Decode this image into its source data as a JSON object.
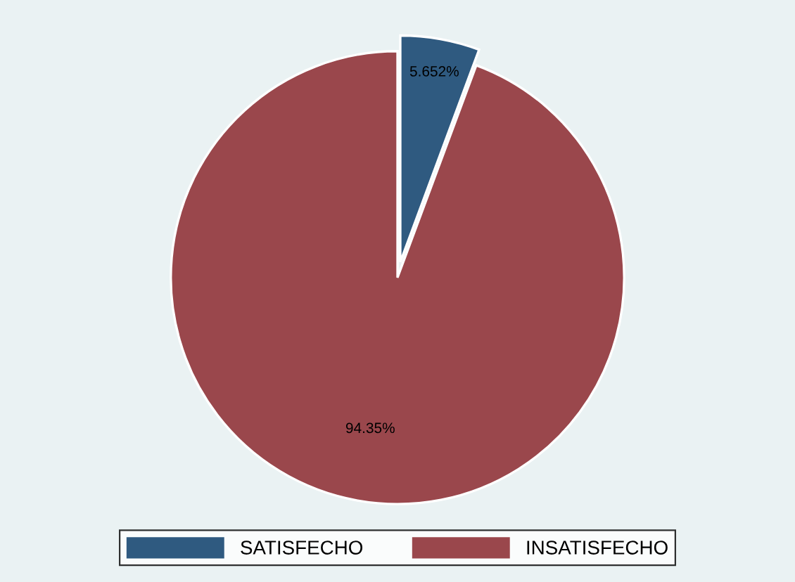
{
  "chart_data": {
    "type": "pie",
    "categories": [
      "SATISFECHO",
      "INSATISFECHO"
    ],
    "values": [
      5.652,
      94.35
    ],
    "colors": [
      "#2f5a80",
      "#9a474c"
    ],
    "value_labels": [
      "5.652%",
      "94.35%"
    ],
    "legend": "bottom"
  }
}
